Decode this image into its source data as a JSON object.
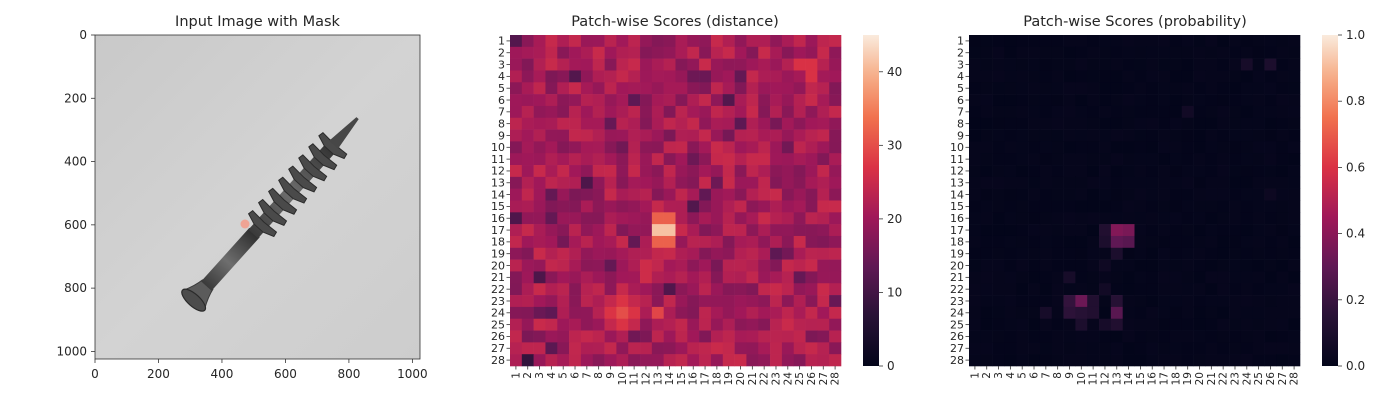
{
  "chart_data": [
    {
      "type": "image",
      "title": "Input Image with Mask",
      "xlim": [
        0,
        1024
      ],
      "ylim": [
        1024,
        0
      ],
      "x_ticks": [
        0,
        200,
        400,
        600,
        800,
        1000
      ],
      "y_ticks": [
        0,
        200,
        400,
        600,
        800,
        1000
      ],
      "grid": false
    },
    {
      "type": "heatmap",
      "title": "Patch-wise Scores (distance)",
      "colormap": "rocket",
      "rows": 28,
      "cols": 28,
      "x_tick_labels": [
        "1",
        "2",
        "3",
        "4",
        "5",
        "6",
        "7",
        "8",
        "9",
        "10",
        "11",
        "12",
        "13",
        "14",
        "15",
        "16",
        "17",
        "18",
        "19",
        "20",
        "21",
        "22",
        "23",
        "24",
        "25",
        "26",
        "27",
        "28"
      ],
      "y_tick_labels": [
        "1",
        "2",
        "3",
        "4",
        "5",
        "6",
        "7",
        "8",
        "9",
        "10",
        "11",
        "12",
        "13",
        "14",
        "15",
        "16",
        "17",
        "18",
        "19",
        "20",
        "21",
        "22",
        "23",
        "24",
        "25",
        "26",
        "27",
        "28"
      ],
      "colorbar": {
        "min": 0,
        "max": 45,
        "ticks": [
          0,
          10,
          20,
          30,
          40
        ]
      },
      "base_range": [
        17,
        25
      ],
      "hotspots": [
        {
          "row": 17,
          "col": 13.5,
          "value": 44,
          "spread": 1.4
        },
        {
          "row": 24,
          "col": 10,
          "value": 30,
          "spread": 2.2
        },
        {
          "row": 24,
          "col": 13,
          "value": 29,
          "spread": 1.3
        },
        {
          "row": 20.5,
          "col": 12,
          "value": 27,
          "spread": 1.5
        },
        {
          "row": 15.5,
          "col": 14.5,
          "value": 28,
          "spread": 1.0
        },
        {
          "row": 3.5,
          "col": 25.5,
          "value": 30,
          "spread": 1.5
        },
        {
          "row": 25,
          "col": 24,
          "value": 25,
          "spread": 2.5
        }
      ],
      "coldspots": [
        {
          "row": 1,
          "col": 1,
          "value": 12
        },
        {
          "row": 28,
          "col": 2,
          "value": 8
        },
        {
          "row": 27,
          "col": 4,
          "value": 13
        },
        {
          "row": 20,
          "col": 9,
          "value": 14
        },
        {
          "row": 4,
          "col": 20,
          "value": 14
        },
        {
          "row": 11,
          "col": 16,
          "value": 15
        },
        {
          "row": 13,
          "col": 18,
          "value": 15
        },
        {
          "row": 18,
          "col": 11,
          "value": 14
        }
      ]
    },
    {
      "type": "heatmap",
      "title": "Patch-wise Scores (probability)",
      "colormap": "rocket",
      "rows": 28,
      "cols": 28,
      "x_tick_labels": [
        "1",
        "2",
        "3",
        "4",
        "5",
        "6",
        "7",
        "8",
        "9",
        "10",
        "11",
        "12",
        "13",
        "14",
        "15",
        "16",
        "17",
        "18",
        "19",
        "20",
        "21",
        "22",
        "23",
        "24",
        "25",
        "26",
        "27",
        "28"
      ],
      "y_tick_labels": [
        "1",
        "2",
        "3",
        "4",
        "5",
        "6",
        "7",
        "8",
        "9",
        "10",
        "11",
        "12",
        "13",
        "14",
        "15",
        "16",
        "17",
        "18",
        "19",
        "20",
        "21",
        "22",
        "23",
        "24",
        "25",
        "26",
        "27",
        "28"
      ],
      "colorbar": {
        "min": 0.0,
        "max": 1.0,
        "ticks": [
          "0.0",
          "0.2",
          "0.4",
          "0.6",
          "0.8",
          "1.0"
        ]
      },
      "cells": [
        {
          "row": 17,
          "col": 13,
          "value": 0.38
        },
        {
          "row": 17,
          "col": 14,
          "value": 0.36
        },
        {
          "row": 18,
          "col": 13,
          "value": 0.3
        },
        {
          "row": 18,
          "col": 14,
          "value": 0.28
        },
        {
          "row": 17,
          "col": 12,
          "value": 0.12
        },
        {
          "row": 18,
          "col": 12,
          "value": 0.1
        },
        {
          "row": 19,
          "col": 13,
          "value": 0.1
        },
        {
          "row": 23,
          "col": 10,
          "value": 0.33
        },
        {
          "row": 23,
          "col": 9,
          "value": 0.18
        },
        {
          "row": 24,
          "col": 9,
          "value": 0.16
        },
        {
          "row": 24,
          "col": 10,
          "value": 0.14
        },
        {
          "row": 23,
          "col": 11,
          "value": 0.12
        },
        {
          "row": 24,
          "col": 11,
          "value": 0.12
        },
        {
          "row": 24,
          "col": 13,
          "value": 0.28
        },
        {
          "row": 23,
          "col": 13,
          "value": 0.14
        },
        {
          "row": 25,
          "col": 13,
          "value": 0.12
        },
        {
          "row": 25,
          "col": 10,
          "value": 0.1
        },
        {
          "row": 25,
          "col": 12,
          "value": 0.08
        },
        {
          "row": 22,
          "col": 12,
          "value": 0.06
        },
        {
          "row": 21,
          "col": 9,
          "value": 0.08
        },
        {
          "row": 24,
          "col": 7,
          "value": 0.08
        },
        {
          "row": 20,
          "col": 12,
          "value": 0.05
        },
        {
          "row": 3,
          "col": 24,
          "value": 0.08
        },
        {
          "row": 3,
          "col": 26,
          "value": 0.1
        },
        {
          "row": 7,
          "col": 19,
          "value": 0.06
        },
        {
          "row": 14,
          "col": 26,
          "value": 0.04
        }
      ]
    }
  ]
}
